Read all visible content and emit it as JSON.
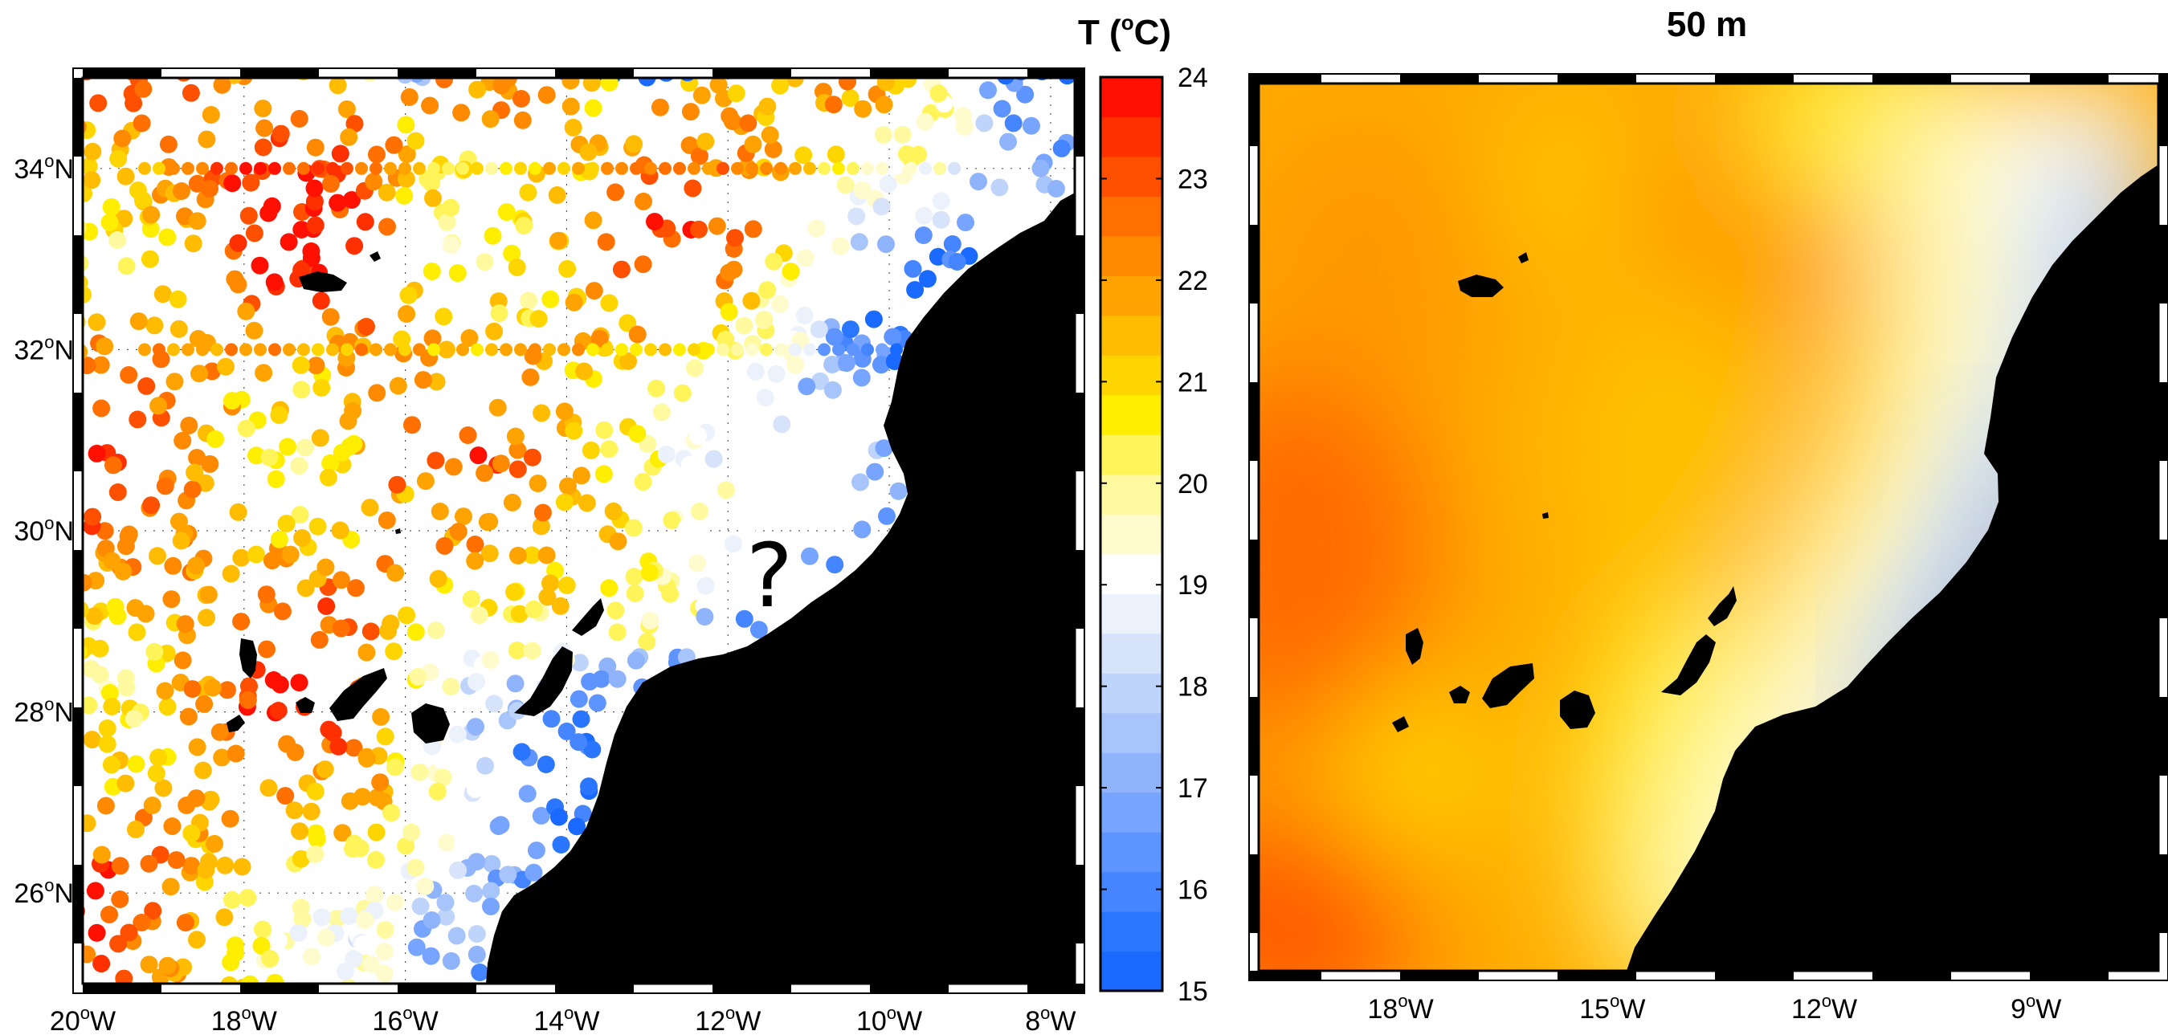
{
  "left_map": {
    "lat_labels": [
      {
        "deg": "34",
        "sup": "o",
        "hemi": "N",
        "value": 34
      },
      {
        "deg": "32",
        "sup": "o",
        "hemi": "N",
        "value": 32
      },
      {
        "deg": "30",
        "sup": "o",
        "hemi": "N",
        "value": 30
      },
      {
        "deg": "28",
        "sup": "o",
        "hemi": "N",
        "value": 28
      },
      {
        "deg": "26",
        "sup": "o",
        "hemi": "N",
        "value": 26
      }
    ],
    "lon_labels": [
      {
        "deg": "20",
        "sup": "o",
        "hemi": "W",
        "value": -20
      },
      {
        "deg": "18",
        "sup": "o",
        "hemi": "W",
        "value": -18
      },
      {
        "deg": "16",
        "sup": "o",
        "hemi": "W",
        "value": -16
      },
      {
        "deg": "14",
        "sup": "o",
        "hemi": "W",
        "value": -14
      },
      {
        "deg": "12",
        "sup": "o",
        "hemi": "W",
        "value": -12
      },
      {
        "deg": "10",
        "sup": "o",
        "hemi": "W",
        "value": -10
      },
      {
        "deg": "8",
        "sup": "o",
        "hemi": "W",
        "value": -8
      }
    ],
    "annotation": "?"
  },
  "colorbar": {
    "title_prefix": "T (",
    "title_sup": "o",
    "title_suffix": "C)",
    "min": 15,
    "max": 24,
    "labels": [
      "24",
      "23",
      "22",
      "21",
      "20",
      "19",
      "18",
      "17",
      "16",
      "15"
    ],
    "colors": [
      "#1a6aff",
      "#2a76ff",
      "#4585ff",
      "#5e94ff",
      "#77a4ff",
      "#8fb4fb",
      "#a8c5fb",
      "#bfd4fb",
      "#d6e3fb",
      "#ecf2fc",
      "#ffffff",
      "#fffbcc",
      "#fff9a0",
      "#fff55a",
      "#ffee00",
      "#ffd500",
      "#ffbc00",
      "#ffa300",
      "#ff8a00",
      "#ff7000",
      "#ff5000",
      "#ff3000",
      "#ff1000"
    ]
  },
  "right_map": {
    "title": "50 m",
    "lon_labels": [
      {
        "deg": "18",
        "sup": "o",
        "hemi": "W",
        "value": -18
      },
      {
        "deg": "15",
        "sup": "o",
        "hemi": "W",
        "value": -15
      },
      {
        "deg": "12",
        "sup": "o",
        "hemi": "W",
        "value": -12
      },
      {
        "deg": "9",
        "sup": "o",
        "hemi": "W",
        "value": -9
      }
    ]
  }
}
